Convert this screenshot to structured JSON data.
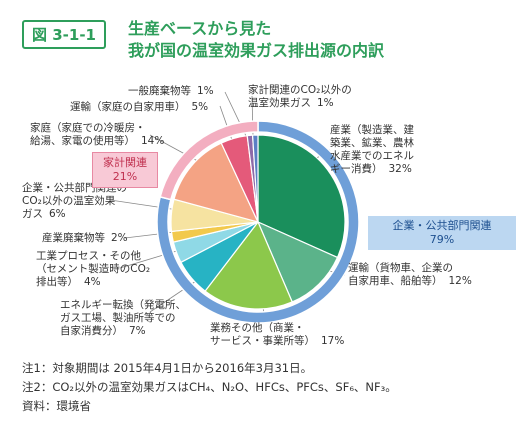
{
  "chart_data": {
    "type": "pie",
    "figure_label": "図 3-1-1",
    "title": "生産ベースから見た\n我が国の温室効果ガス排出源の内訳",
    "categories": [
      "産業（製造業、建\n築業、鉱業、農林\n水産業でのエネル\nギー消費）",
      "運輸（貨物車、企業の\n自家用車、船舶等）",
      "業務その他（商業・\nサービス・事業所等）",
      "エネルギー転換（発電所、\nガス工場、製油所等での\n自家消費分）",
      "工業プロセス・その他\n（セメント製造時のCO₂\n排出等）",
      "産業廃棄物等",
      "企業・公共部門関連の\nCO₂以外の温室効果\nガス",
      "家庭（家庭での冷暖房・\n給湯、家電の使用等）",
      "運輸（家庭の自家用車）",
      "一般廃棄物等",
      "家計関連のCO₂以外の\n温室効果ガス"
    ],
    "values": [
      32,
      12,
      17,
      7,
      4,
      2,
      6,
      14,
      5,
      1,
      1
    ],
    "value_labels": [
      "32%",
      "12%",
      "17%",
      "7%",
      "4%",
      "2%",
      "6%",
      "14%",
      "5%",
      "1%",
      "1%"
    ],
    "colors": [
      "#1a8f5c",
      "#5bb38a",
      "#8cc84b",
      "#27b3c4",
      "#8fd9e6",
      "#f2c94c",
      "#f6e3a1",
      "#f4a384",
      "#e45a7a",
      "#8e6aa8",
      "#5b7fc4"
    ],
    "outer": {
      "categories": [
        "企業・公共部門関連",
        "家計関連"
      ],
      "values": [
        79,
        21
      ],
      "value_labels": [
        "79%",
        "21%"
      ],
      "colors": [
        "#6f9fd8",
        "#f3aec0"
      ]
    },
    "notes": [
      "注1：対象期間は 2015年4月1日から2016年3月31日。",
      "注2：CO₂以外の温室効果ガスはCH₄、N₂O、HFCs、PFCs、SF₆、NF₃。",
      "資料：環境省"
    ]
  }
}
